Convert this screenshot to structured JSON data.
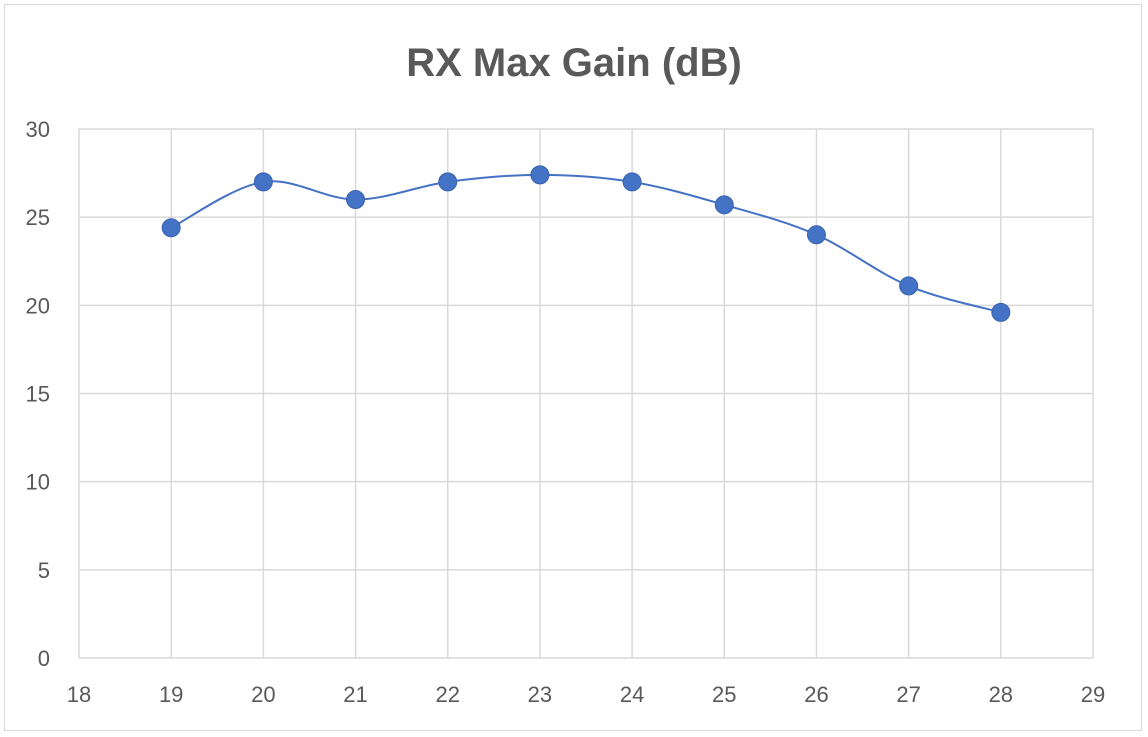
{
  "chart_data": {
    "type": "scatter",
    "title": "RX Max Gain (dB)",
    "xlabel": "",
    "ylabel": "",
    "xlim": [
      18,
      29
    ],
    "ylim": [
      0,
      30
    ],
    "x_ticks": [
      18,
      19,
      20,
      21,
      22,
      23,
      24,
      25,
      26,
      27,
      28,
      29
    ],
    "y_ticks": [
      0,
      5,
      10,
      15,
      20,
      25,
      30
    ],
    "grid": true,
    "smoothed_line": true,
    "legend": "none",
    "series": [
      {
        "color": "#4472c4",
        "x": [
          19,
          20,
          21,
          22,
          23,
          24,
          25,
          26,
          27,
          28
        ],
        "y": [
          24.4,
          27.0,
          26.0,
          27.0,
          27.4,
          27.0,
          25.7,
          24.0,
          21.1,
          19.6
        ]
      }
    ]
  }
}
